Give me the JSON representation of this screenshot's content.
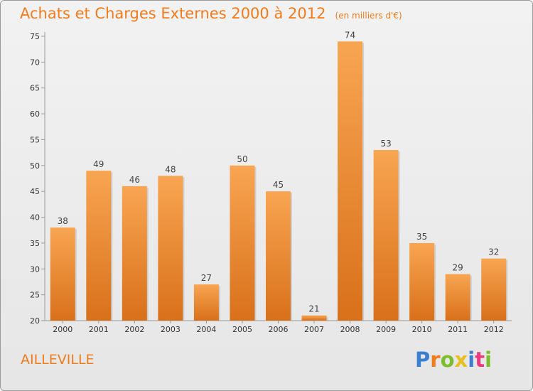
{
  "chart_data": {
    "type": "bar",
    "title": "Achats et Charges Externes 2000 à 2012",
    "subtitle": "(en milliers d'€)",
    "categories": [
      "2000",
      "2001",
      "2002",
      "2003",
      "2004",
      "2005",
      "2006",
      "2007",
      "2008",
      "2009",
      "2010",
      "2011",
      "2012"
    ],
    "values": [
      38,
      49,
      46,
      48,
      27,
      50,
      45,
      21,
      74,
      53,
      35,
      29,
      32
    ],
    "ylim": [
      20,
      75
    ],
    "yticks": [
      20,
      25,
      30,
      35,
      40,
      45,
      50,
      55,
      60,
      65,
      70,
      75
    ],
    "grid": false,
    "bar_color": "#f08a2a"
  },
  "commune": "AILLEVILLE",
  "logo": {
    "letters": [
      "P",
      "r",
      "o",
      "x",
      "i",
      "t",
      "i"
    ],
    "colors": [
      "#3a7fd1",
      "#f07c1e",
      "#7cbd2e",
      "#e8c020",
      "#3a7fd1",
      "#e83a7e",
      "#7cbd2e"
    ]
  }
}
